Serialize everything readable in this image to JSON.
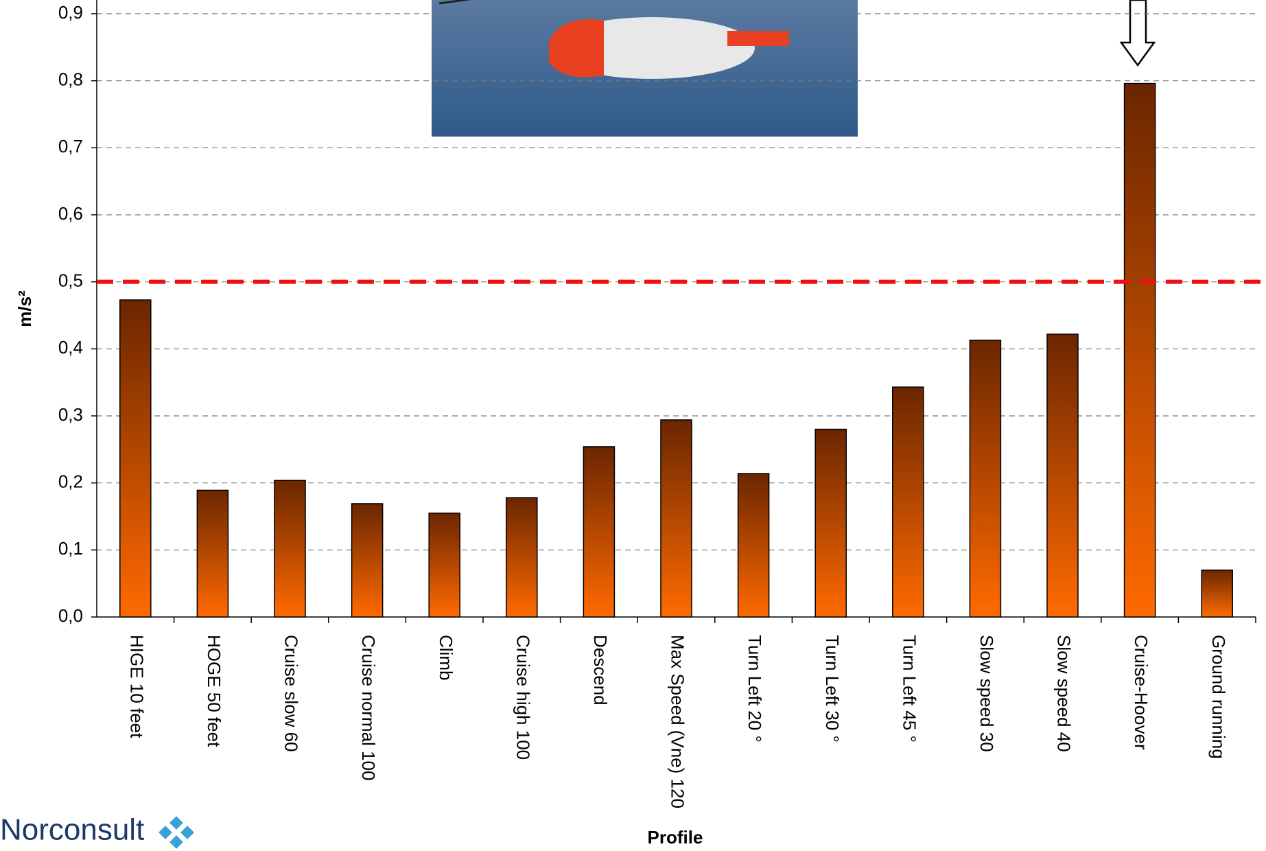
{
  "chart_data": {
    "type": "bar",
    "y_label": "m/s²",
    "x_label": "Profile",
    "logo": "Norconsult",
    "categories": [
      "HIGE 10 feet",
      "HOGE 50 feet",
      "Cruise slow 60",
      "Cruise normal 100",
      "Climb",
      "Cruise high 100",
      "Descend",
      "Max Speed (Vne) 120",
      "Turn Left 20 °",
      "Turn Left 30 °",
      "Turn Left 45 °",
      "Slow speed 30",
      "Slow speed 40",
      "Cruise-Hoover",
      "Ground running"
    ],
    "values": [
      0.473,
      0.189,
      0.204,
      0.169,
      0.155,
      0.178,
      0.254,
      0.294,
      0.214,
      0.28,
      0.343,
      0.413,
      0.422,
      0.796,
      0.07
    ],
    "color_top": "#6b2600",
    "color_bottom": "#ff6a00",
    "threshold": 0.5,
    "threshold_color": "#ee1111",
    "ylim": [
      0,
      0.9
    ],
    "yticks": [
      {
        "value": 0,
        "label": "0,0"
      },
      {
        "value": 0.1,
        "label": "0,1"
      },
      {
        "value": 0.2,
        "label": "0,2"
      },
      {
        "value": 0.3,
        "label": "0,3"
      },
      {
        "value": 0.4,
        "label": "0,4"
      },
      {
        "value": 0.5,
        "label": "0,5"
      },
      {
        "value": 0.6,
        "label": "0,6"
      },
      {
        "value": 0.7,
        "label": "0,7"
      },
      {
        "value": 0.8,
        "label": "0,8"
      },
      {
        "value": 0.9,
        "label": "0,9"
      }
    ],
    "grid": true
  }
}
